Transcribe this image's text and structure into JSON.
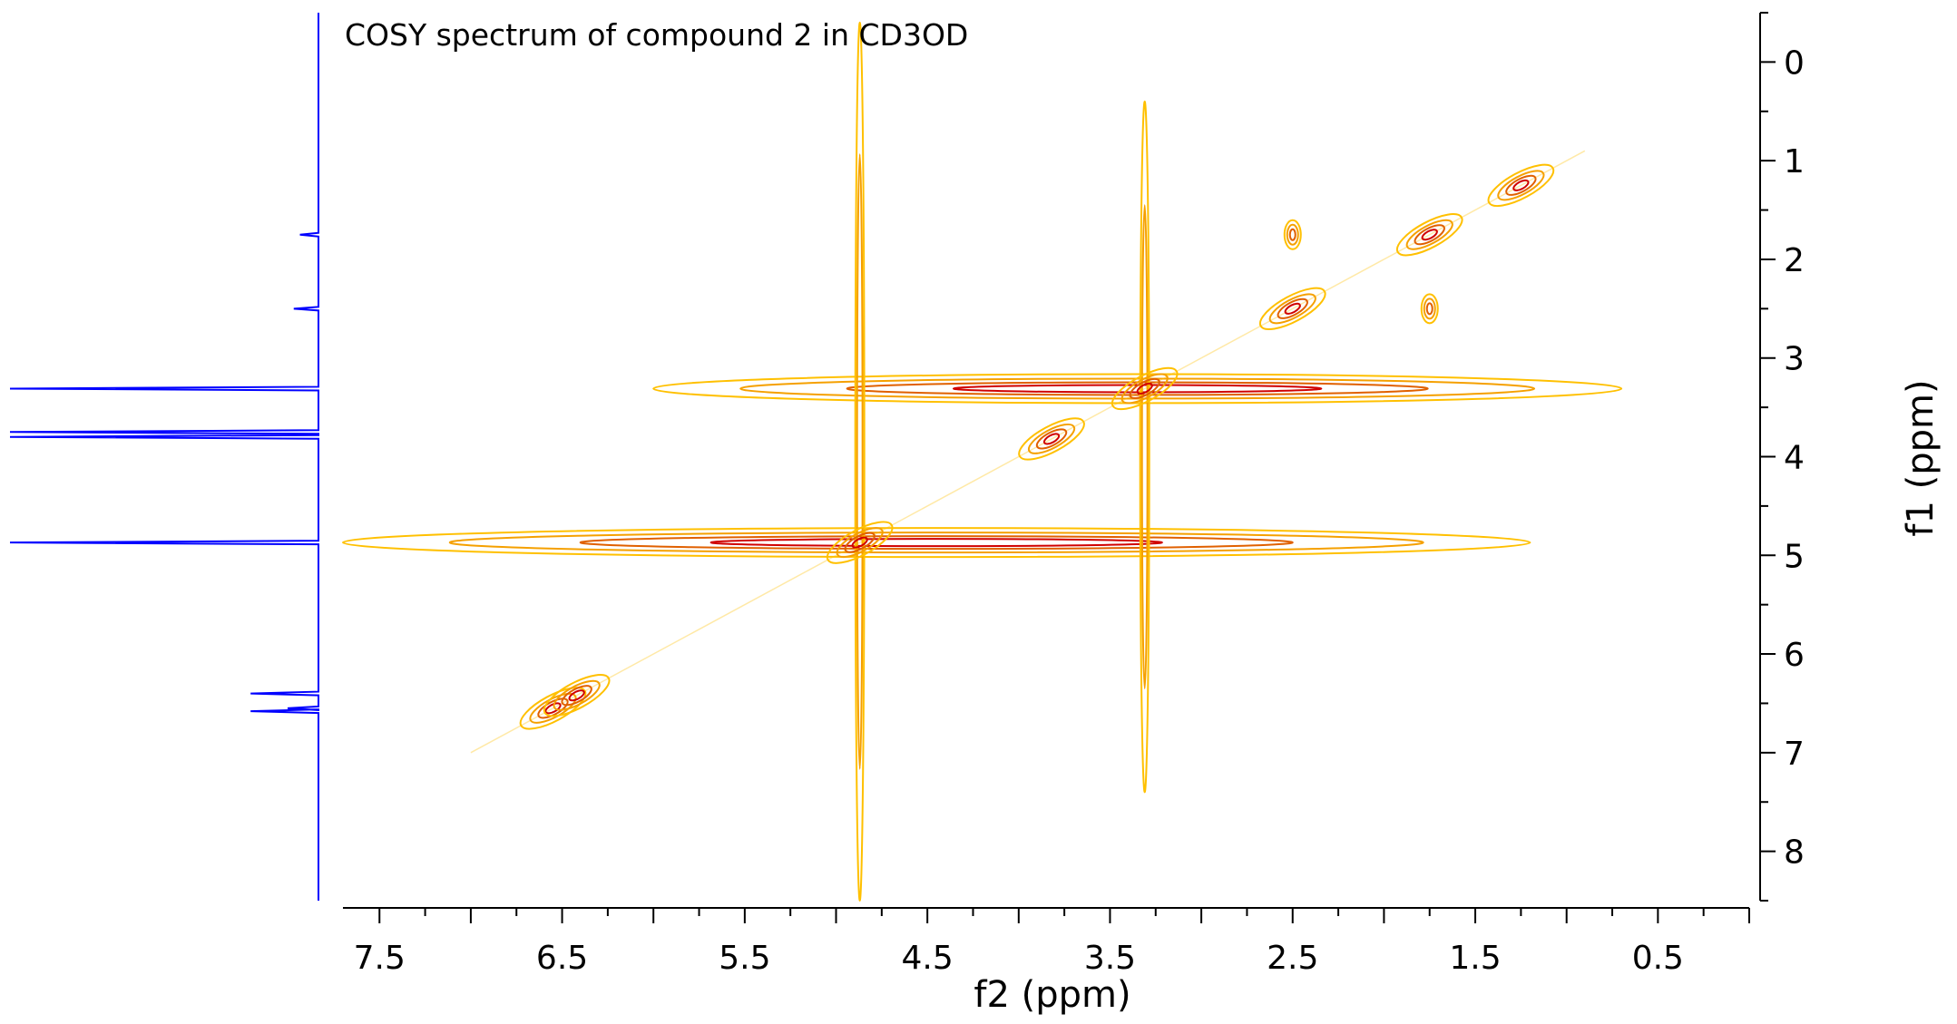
{
  "chart_data": {
    "type": "heatmap",
    "title": "COSY spectrum of compound 2 in CD3OD",
    "xlabel": "f2 (ppm)",
    "ylabel": "f1 (ppm)",
    "xlim": [
      7.7,
      0.0
    ],
    "ylim": [
      -0.5,
      8.5
    ],
    "x_ticks": [
      "7.5",
      "6.5",
      "5.5",
      "4.5",
      "3.5",
      "2.5",
      "1.5",
      "0.5"
    ],
    "y_ticks": [
      "0",
      "1",
      "2",
      "3",
      "4",
      "5",
      "6",
      "7",
      "8"
    ],
    "grid": false,
    "contour_colors": [
      "#FFC000",
      "#F5A000",
      "#E06000",
      "#D00000"
    ],
    "trace_color": "#0000FF",
    "diagonal_peaks": [
      {
        "x": 6.55,
        "y": 6.55
      },
      {
        "x": 6.42,
        "y": 6.42
      },
      {
        "x": 4.87,
        "y": 4.87
      },
      {
        "x": 3.82,
        "y": 3.82
      },
      {
        "x": 3.31,
        "y": 3.31
      },
      {
        "x": 2.5,
        "y": 2.5
      },
      {
        "x": 1.75,
        "y": 1.75
      },
      {
        "x": 1.25,
        "y": 1.25
      }
    ],
    "cross_peaks": [
      {
        "x": 2.5,
        "y": 1.75
      },
      {
        "x": 1.75,
        "y": 2.5
      }
    ],
    "solvent_ridges": [
      {
        "axis": "row",
        "y": 4.87,
        "x_from": 7.7,
        "x_to": 1.2
      },
      {
        "axis": "row",
        "y": 3.31,
        "x_from": 6.0,
        "x_to": 0.7
      },
      {
        "axis": "column",
        "x": 4.87,
        "y_from": -0.4,
        "y_to": 8.5
      },
      {
        "axis": "column",
        "x": 3.31,
        "y_from": 0.4,
        "y_to": 7.4
      }
    ],
    "projection_1d": [
      {
        "shift": 1.75,
        "intensity": 0.06
      },
      {
        "shift": 2.5,
        "intensity": 0.08
      },
      {
        "shift": 3.31,
        "intensity": 1.0
      },
      {
        "shift": 3.75,
        "intensity": 1.0
      },
      {
        "shift": 3.8,
        "intensity": 1.0
      },
      {
        "shift": 4.87,
        "intensity": 1.0
      },
      {
        "shift": 6.4,
        "intensity": 0.22
      },
      {
        "shift": 6.55,
        "intensity": 0.1
      },
      {
        "shift": 6.58,
        "intensity": 0.22
      }
    ]
  }
}
